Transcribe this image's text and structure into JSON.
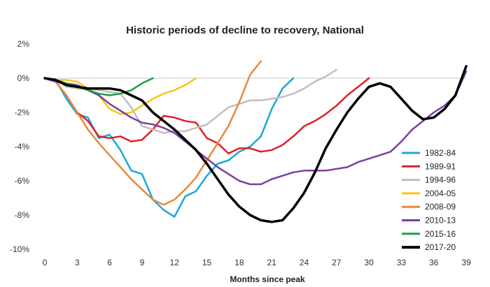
{
  "chart_data": {
    "type": "line",
    "title": "Historic periods of decline to recovery, National",
    "xlabel": "Months since peak",
    "ylabel": "",
    "xlim": [
      0,
      39
    ],
    "ylim": [
      -10,
      2
    ],
    "x_ticks": [
      0,
      3,
      6,
      9,
      12,
      15,
      18,
      21,
      24,
      27,
      30,
      33,
      36,
      39
    ],
    "y_ticks": [
      2,
      0,
      -2,
      -4,
      -6,
      -8,
      -10
    ],
    "y_tick_labels": [
      "2%",
      "0%",
      "-2%",
      "-4%",
      "-6%",
      "-8%",
      "-10%"
    ],
    "legend_position": "right",
    "series": [
      {
        "name": "1982-84",
        "color": "#1aa7dc",
        "width": 2.5,
        "values": [
          0,
          -0.1,
          -1.2,
          -2.1,
          -2.3,
          -3.5,
          -3.3,
          -4.2,
          -5.4,
          -5.6,
          -7.1,
          -7.7,
          -8.1,
          -6.9,
          -6.6,
          -5.7,
          -5.0,
          -4.8,
          -4.3,
          -4.0,
          -3.4,
          -1.8,
          -0.6,
          0.0
        ]
      },
      {
        "name": "1989-91",
        "color": "#e01f26",
        "width": 2.5,
        "values": [
          0,
          -0.2,
          -1.0,
          -2.0,
          -2.5,
          -3.4,
          -3.5,
          -3.4,
          -3.7,
          -3.6,
          -3.0,
          -2.2,
          -2.3,
          -2.5,
          -2.6,
          -3.5,
          -3.8,
          -4.4,
          -4.1,
          -4.1,
          -4.3,
          -4.2,
          -3.9,
          -3.4,
          -2.8,
          -2.5,
          -2.1,
          -1.6,
          -1.0,
          -0.5,
          0.0
        ]
      },
      {
        "name": "1994-96",
        "color": "#bfbfbf",
        "width": 2.5,
        "values": [
          0,
          -0.1,
          -0.5,
          -0.6,
          -0.6,
          -0.7,
          -0.8,
          -0.9,
          -1.7,
          -2.8,
          -3.0,
          -3.2,
          -3.1,
          -3.1,
          -2.9,
          -2.7,
          -2.2,
          -1.7,
          -1.5,
          -1.3,
          -1.3,
          -1.2,
          -1.1,
          -0.9,
          -0.6,
          -0.2,
          0.1,
          0.5
        ]
      },
      {
        "name": "2004-05",
        "color": "#f5c518",
        "width": 2.5,
        "values": [
          0,
          -0.1,
          -0.1,
          -0.2,
          -0.6,
          -1.0,
          -1.8,
          -2.1,
          -2.0,
          -1.6,
          -1.2,
          -0.9,
          -0.7,
          -0.4,
          0.0
        ]
      },
      {
        "name": "2008-09",
        "color": "#e8893c",
        "width": 2.5,
        "values": [
          0,
          -0.2,
          -1.0,
          -2.0,
          -3.0,
          -3.8,
          -4.5,
          -5.2,
          -5.9,
          -6.5,
          -7.1,
          -7.4,
          -7.1,
          -6.5,
          -5.8,
          -4.8,
          -3.8,
          -2.8,
          -1.4,
          0.2,
          1.0
        ]
      },
      {
        "name": "2010-13",
        "color": "#7b3fa0",
        "width": 2.5,
        "values": [
          0,
          -0.2,
          -0.3,
          -0.4,
          -0.7,
          -1.0,
          -1.5,
          -1.9,
          -2.3,
          -2.6,
          -2.7,
          -2.9,
          -3.2,
          -3.7,
          -4.2,
          -4.7,
          -5.2,
          -5.6,
          -6.0,
          -6.2,
          -6.2,
          -5.9,
          -5.7,
          -5.5,
          -5.4,
          -5.4,
          -5.4,
          -5.3,
          -5.2,
          -4.9,
          -4.7,
          -4.5,
          -4.3,
          -3.7,
          -3.0,
          -2.5,
          -2.0,
          -1.6,
          -1.0,
          0.4
        ]
      },
      {
        "name": "2015-16",
        "color": "#1f9e49",
        "width": 2.5,
        "values": [
          0,
          -0.1,
          -0.3,
          -0.5,
          -0.7,
          -0.9,
          -1.0,
          -0.9,
          -0.7,
          -0.3,
          0.0
        ]
      },
      {
        "name": "2017-20",
        "color": "#000000",
        "width": 3.5,
        "values": [
          0,
          -0.1,
          -0.4,
          -0.5,
          -0.6,
          -0.6,
          -0.6,
          -0.7,
          -1.0,
          -1.3,
          -2.0,
          -2.5,
          -3.0,
          -3.6,
          -4.2,
          -5.0,
          -5.9,
          -6.8,
          -7.5,
          -8.0,
          -8.3,
          -8.4,
          -8.3,
          -7.6,
          -6.7,
          -5.5,
          -4.1,
          -3.0,
          -2.0,
          -1.2,
          -0.5,
          -0.3,
          -0.5,
          -1.2,
          -1.9,
          -2.4,
          -2.3,
          -1.8,
          -1.0,
          0.7
        ]
      }
    ]
  }
}
